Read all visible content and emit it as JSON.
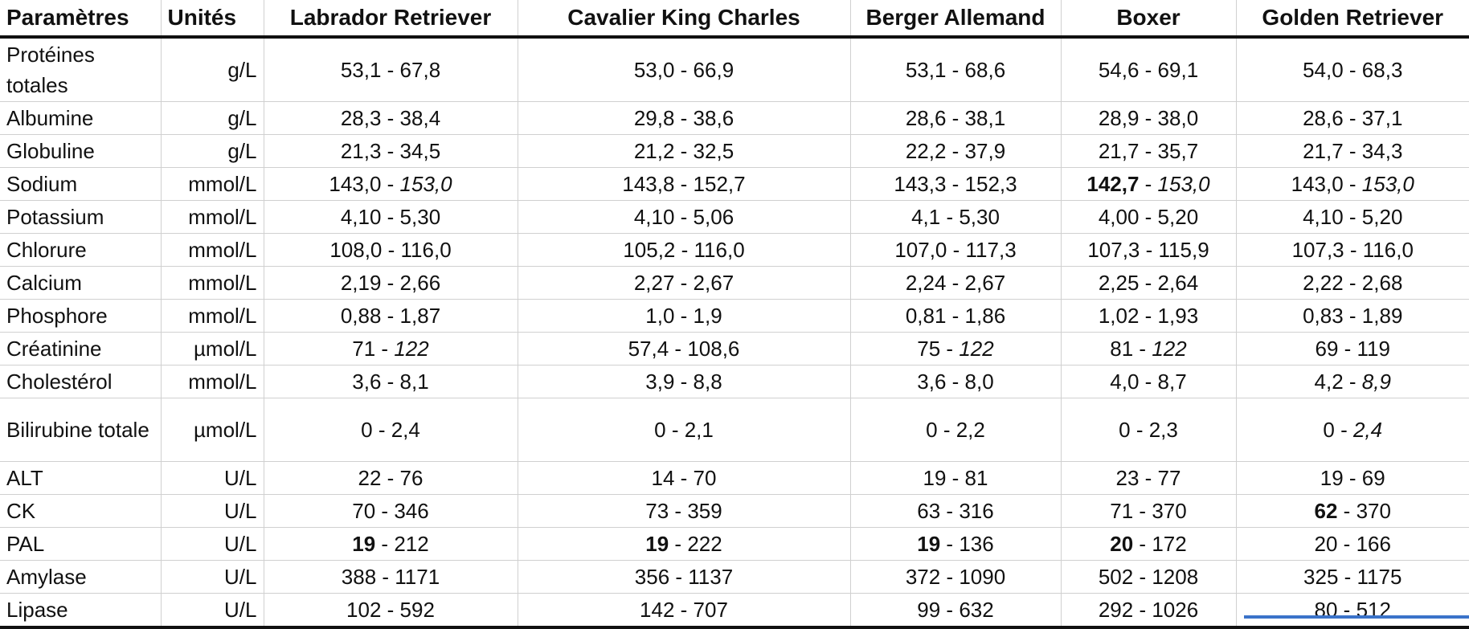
{
  "table": {
    "headers": [
      "Paramètres",
      "Unités",
      "Labrador Retriever",
      "Cavalier King Charles",
      "Berger Allemand",
      "Boxer",
      "Golden Retriever"
    ],
    "rows": [
      {
        "param": "Protéines totales",
        "unit": "g/L",
        "tall": true,
        "cells": [
          {
            "lo": "53,1",
            "hi": "67,8"
          },
          {
            "lo": "53,0",
            "hi": "66,9"
          },
          {
            "lo": "53,1",
            "hi": "68,6"
          },
          {
            "lo": "54,6",
            "hi": "69,1"
          },
          {
            "lo": "54,0",
            "hi": "68,3"
          }
        ]
      },
      {
        "param": "Albumine",
        "unit": "g/L",
        "cells": [
          {
            "lo": "28,3",
            "hi": "38,4"
          },
          {
            "lo": "29,8",
            "hi": "38,6"
          },
          {
            "lo": "28,6",
            "hi": "38,1"
          },
          {
            "lo": "28,9",
            "hi": "38,0"
          },
          {
            "lo": "28,6",
            "hi": "37,1"
          }
        ]
      },
      {
        "param": "Globuline",
        "unit": "g/L",
        "cells": [
          {
            "lo": "21,3",
            "hi": "34,5"
          },
          {
            "lo": "21,2",
            "hi": "32,5"
          },
          {
            "lo": "22,2",
            "hi": "37,9"
          },
          {
            "lo": "21,7",
            "hi": "35,7"
          },
          {
            "lo": "21,7",
            "hi": "34,3"
          }
        ]
      },
      {
        "param": "Sodium",
        "unit": "mmol/L",
        "cells": [
          {
            "lo": "143,0",
            "hi": "153,0",
            "hi_italic": true
          },
          {
            "lo": "143,8",
            "hi": "152,7"
          },
          {
            "lo": "143,3",
            "hi": "152,3"
          },
          {
            "lo": "142,7",
            "lo_bold": true,
            "hi": "153,0",
            "hi_italic": true
          },
          {
            "lo": "143,0",
            "hi": "153,0",
            "hi_italic": true
          }
        ]
      },
      {
        "param": "Potassium",
        "unit": "mmol/L",
        "cells": [
          {
            "lo": "4,10",
            "hi": "5,30"
          },
          {
            "lo": "4,10",
            "hi": "5,06"
          },
          {
            "lo": "4,1",
            "hi": "5,30"
          },
          {
            "lo": "4,00",
            "hi": "5,20"
          },
          {
            "lo": "4,10",
            "hi": "5,20"
          }
        ]
      },
      {
        "param": "Chlorure",
        "unit": "mmol/L",
        "cells": [
          {
            "lo": "108,0",
            "hi": "116,0"
          },
          {
            "lo": "105,2",
            "hi": "116,0"
          },
          {
            "lo": "107,0",
            "hi": "117,3"
          },
          {
            "lo": "107,3",
            "hi": "115,9"
          },
          {
            "lo": "107,3",
            "hi": "116,0"
          }
        ]
      },
      {
        "param": "Calcium",
        "unit": "mmol/L",
        "cells": [
          {
            "lo": "2,19",
            "hi": "2,66"
          },
          {
            "lo": "2,27",
            "hi": "2,67"
          },
          {
            "lo": "2,24",
            "hi": "2,67"
          },
          {
            "lo": "2,25",
            "hi": "2,64"
          },
          {
            "lo": "2,22",
            "hi": "2,68"
          }
        ]
      },
      {
        "param": "Phosphore",
        "unit": "mmol/L",
        "cells": [
          {
            "lo": "0,88",
            "hi": "1,87"
          },
          {
            "lo": "1,0",
            "hi": "1,9"
          },
          {
            "lo": "0,81",
            "hi": "1,86"
          },
          {
            "lo": "1,02",
            "hi": "1,93"
          },
          {
            "lo": "0,83",
            "hi": "1,89"
          }
        ]
      },
      {
        "param": "Créatinine",
        "unit": "µmol/L",
        "cells": [
          {
            "lo": "71",
            "hi": "122",
            "hi_italic": true
          },
          {
            "lo": "57,4",
            "hi": "108,6"
          },
          {
            "lo": "75",
            "hi": "122",
            "hi_italic": true
          },
          {
            "lo": "81",
            "hi": "122",
            "hi_italic": true
          },
          {
            "lo": "69",
            "hi": "119"
          }
        ]
      },
      {
        "param": "Cholestérol",
        "unit": "mmol/L",
        "cells": [
          {
            "lo": "3,6",
            "hi": "8,1"
          },
          {
            "lo": "3,9",
            "hi": "8,8"
          },
          {
            "lo": "3,6",
            "hi": "8,0"
          },
          {
            "lo": "4,0",
            "hi": "8,7"
          },
          {
            "lo": "4,2",
            "hi": "8,9",
            "hi_italic": true
          }
        ]
      },
      {
        "param": "Bilirubine totale",
        "unit": "µmol/L",
        "tall": true,
        "cells": [
          {
            "lo": "0",
            "hi": "2,4"
          },
          {
            "lo": "0",
            "hi": "2,1"
          },
          {
            "lo": "0",
            "hi": "2,2"
          },
          {
            "lo": "0",
            "hi": "2,3"
          },
          {
            "lo": "0",
            "hi": "2,4",
            "hi_italic": true
          }
        ]
      },
      {
        "param": "ALT",
        "unit": "U/L",
        "cells": [
          {
            "lo": "22",
            "hi": "76"
          },
          {
            "lo": "14",
            "hi": "70"
          },
          {
            "lo": "19",
            "hi": "81"
          },
          {
            "lo": "23",
            "hi": "77"
          },
          {
            "lo": "19",
            "hi": "69"
          }
        ]
      },
      {
        "param": "CK",
        "unit": "U/L",
        "cells": [
          {
            "lo": "70",
            "hi": "346"
          },
          {
            "lo": "73",
            "hi": "359"
          },
          {
            "lo": "63",
            "hi": "316"
          },
          {
            "lo": "71",
            "hi": "370"
          },
          {
            "lo": "62",
            "lo_bold": true,
            "hi": "370"
          }
        ]
      },
      {
        "param": "PAL",
        "unit": "U/L",
        "cells": [
          {
            "lo": "19",
            "lo_bold": true,
            "hi": "212"
          },
          {
            "lo": "19",
            "lo_bold": true,
            "hi": "222"
          },
          {
            "lo": "19",
            "lo_bold": true,
            "hi": "136"
          },
          {
            "lo": "20",
            "lo_bold": true,
            "hi": "172"
          },
          {
            "lo": "20",
            "hi": "166"
          }
        ]
      },
      {
        "param": "Amylase",
        "unit": "U/L",
        "cells": [
          {
            "lo": "388",
            "hi": "1171"
          },
          {
            "lo": "356",
            "hi": "1137"
          },
          {
            "lo": "372",
            "hi": "1090"
          },
          {
            "lo": "502",
            "hi": "1208"
          },
          {
            "lo": "325",
            "hi": "1175"
          }
        ]
      },
      {
        "param": "Lipase",
        "unit": "U/L",
        "cells": [
          {
            "lo": "102",
            "hi": "592"
          },
          {
            "lo": "142",
            "hi": "707"
          },
          {
            "lo": "99",
            "hi": "632"
          },
          {
            "lo": "292",
            "hi": "1026"
          },
          {
            "lo": "80",
            "hi": "512"
          }
        ]
      }
    ]
  },
  "colors": {
    "grid": "#d0d0d0",
    "rule": "#111111",
    "accent": "#3b73c9"
  }
}
